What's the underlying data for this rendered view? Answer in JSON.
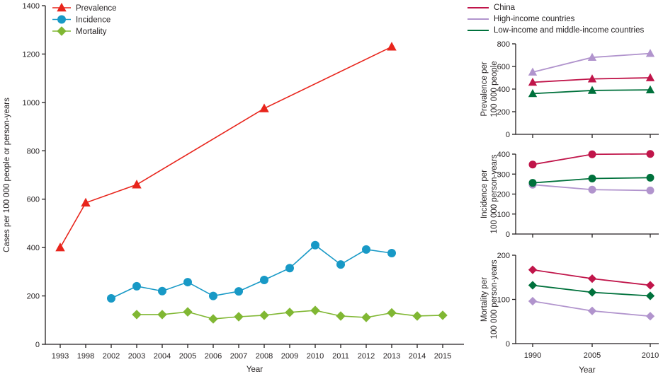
{
  "figure": {
    "background": "#ffffff",
    "text_color": "#231f20",
    "axis_color": "#231f20"
  },
  "chart_data": [
    {
      "id": "trends",
      "type": "line",
      "title": "",
      "xlabel": "Year",
      "ylabel": "Cases per 100 000 people or person-years",
      "ylim": [
        0,
        1400
      ],
      "yticks": [
        0,
        200,
        400,
        600,
        800,
        1000,
        1200,
        1400
      ],
      "categories": [
        "1993",
        "1998",
        "2002",
        "2003",
        "2004",
        "2005",
        "2006",
        "2007",
        "2008",
        "2009",
        "2010",
        "2011",
        "2012",
        "2013",
        "2014",
        "2015"
      ],
      "grid": false,
      "legend_position": "top-left-inside",
      "series": [
        {
          "name": "Prevalence",
          "color": "#e8251c",
          "marker": "triangle",
          "values": [
            400,
            585,
            null,
            660,
            null,
            null,
            null,
            null,
            975,
            null,
            null,
            null,
            null,
            1230,
            null,
            null
          ]
        },
        {
          "name": "Incidence",
          "color": "#1899c6",
          "marker": "circle",
          "values": [
            null,
            null,
            190,
            240,
            220,
            257,
            200,
            219,
            266,
            315,
            410,
            330,
            392,
            377,
            null,
            null
          ]
        },
        {
          "name": "Mortality",
          "color": "#80b733",
          "marker": "diamond",
          "values": [
            null,
            null,
            null,
            123,
            123,
            134,
            105,
            114,
            120,
            132,
            140,
            117,
            111,
            130,
            117,
            120
          ]
        }
      ]
    },
    {
      "id": "prevalence-by-region",
      "type": "line",
      "xlabel": "Year",
      "ylabel": [
        "Prevalence per",
        "100 000 people"
      ],
      "ylim": [
        0,
        800
      ],
      "yticks": [
        0,
        200,
        400,
        600,
        800
      ],
      "categories": [
        "1990",
        "2005",
        "2010"
      ],
      "grid": false,
      "marker": "triangle",
      "series": [
        {
          "name": "China",
          "color": "#c0154a",
          "values": [
            460,
            490,
            500
          ]
        },
        {
          "name": "High-income countries",
          "color": "#b194cd",
          "values": [
            550,
            680,
            715
          ]
        },
        {
          "name": "Low-income and middle-income countries",
          "color": "#00713c",
          "values": [
            360,
            388,
            393
          ]
        }
      ]
    },
    {
      "id": "incidence-by-region",
      "type": "line",
      "xlabel": "Year",
      "ylabel": [
        "Incidence per",
        "100 000 person-years"
      ],
      "ylim": [
        0,
        400
      ],
      "yticks": [
        0,
        100,
        200,
        300,
        400
      ],
      "categories": [
        "1990",
        "2005",
        "2010"
      ],
      "grid": false,
      "marker": "circle",
      "series": [
        {
          "name": "China",
          "color": "#c0154a",
          "values": [
            348,
            399,
            401
          ]
        },
        {
          "name": "High-income countries",
          "color": "#b194cd",
          "values": [
            247,
            222,
            218
          ]
        },
        {
          "name": "Low-income and middle-income countries",
          "color": "#00713c",
          "values": [
            256,
            278,
            282
          ]
        }
      ]
    },
    {
      "id": "mortality-by-region",
      "type": "line",
      "xlabel": "Year",
      "ylabel": [
        "Mortality per",
        "100 000 person-years"
      ],
      "ylim": [
        0,
        200
      ],
      "yticks": [
        0,
        100,
        200
      ],
      "categories": [
        "1990",
        "2005",
        "2010"
      ],
      "grid": false,
      "marker": "diamond",
      "series": [
        {
          "name": "China",
          "color": "#c0154a",
          "values": [
            167,
            147,
            132
          ]
        },
        {
          "name": "High-income countries",
          "color": "#b194cd",
          "values": [
            96,
            74,
            62
          ]
        },
        {
          "name": "Low-income and middle-income countries",
          "color": "#00713c",
          "values": [
            132,
            116,
            108
          ]
        }
      ]
    }
  ],
  "right_legend": {
    "items": [
      {
        "label": "China",
        "color": "#c0154a"
      },
      {
        "label": "High-income countries",
        "color": "#b194cd"
      },
      {
        "label": "Low-income and middle-income countries",
        "color": "#00713c"
      }
    ]
  }
}
